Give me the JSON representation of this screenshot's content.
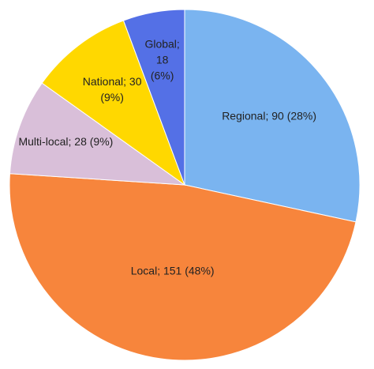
{
  "chart_data": {
    "type": "pie",
    "values": [
      90,
      151,
      28,
      30,
      18
    ],
    "value_labels": [
      [
        "Regional; 90 (28%)"
      ],
      [
        "Local; 151 (48%)"
      ],
      [
        "Multi-local; 28 (9%)"
      ],
      [
        "National; 30",
        "(9%)"
      ],
      [
        "Global;",
        "18",
        "(6%)"
      ]
    ],
    "colors": [
      "#7ab4f0",
      "#f7853c",
      "#d9bfd9",
      "#ffd800",
      "#5470e6"
    ]
  }
}
